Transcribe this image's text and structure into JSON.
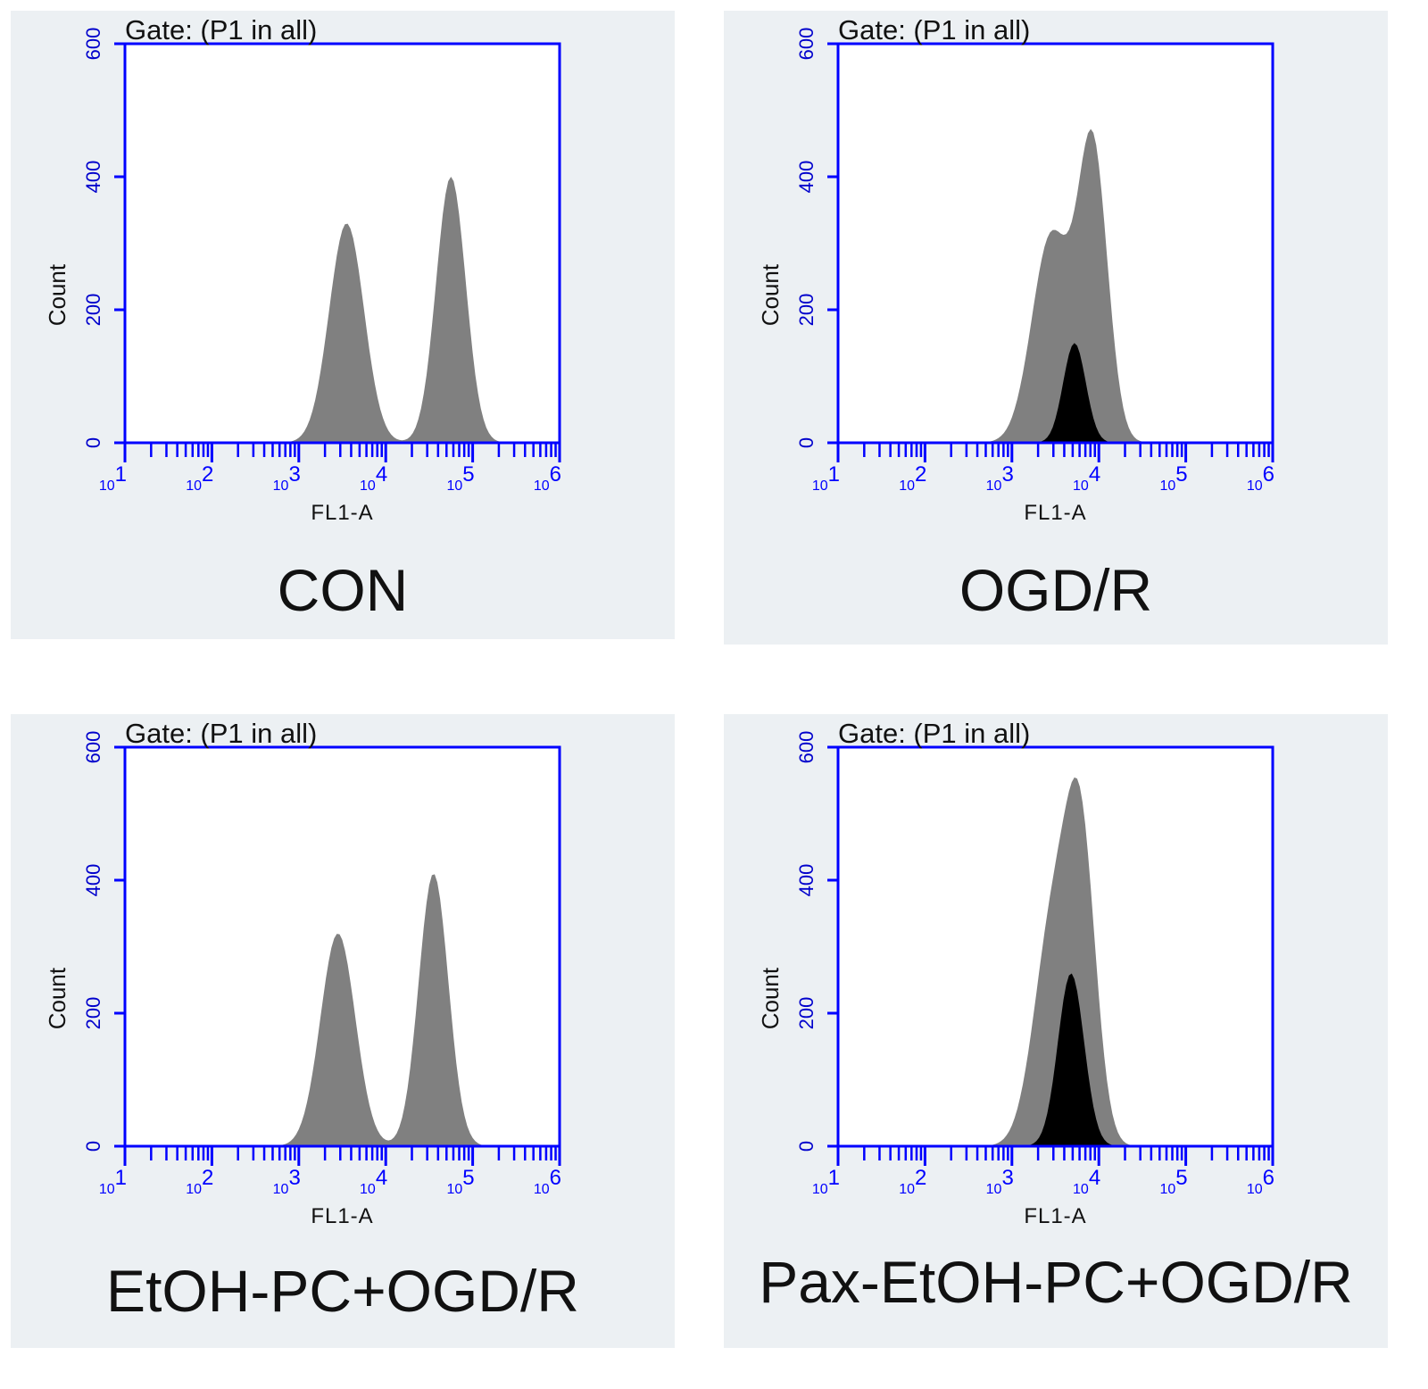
{
  "colors": {
    "panel_background": "#ecf0f3",
    "axis": "#0000ff",
    "tick_label": "#0000cc",
    "gray_histogram": "#808080",
    "black_histogram": "#000000",
    "text": "#111111"
  },
  "chart_data": [
    {
      "type": "histogram",
      "gate": "Gate: (P1 in all)",
      "xlabel": "FL1-A",
      "ylabel": "Count",
      "xscale": "log",
      "xlim": [
        10,
        1000000
      ],
      "ylim": [
        0,
        600
      ],
      "yticks": [
        0,
        200,
        400,
        600
      ],
      "xticks": [
        10,
        100,
        1000,
        10000,
        100000,
        1000000
      ],
      "grid": false,
      "label": "CON",
      "series": [
        {
          "color": "#808080",
          "peaks": [
            {
              "log10_mean": 3.55,
              "log10_sd": 0.2,
              "count": 330
            },
            {
              "log10_mean": 4.75,
              "log10_sd": 0.17,
              "count": 400
            }
          ]
        }
      ]
    },
    {
      "type": "histogram",
      "gate": "Gate: (P1 in all)",
      "xlabel": "FL1-A",
      "ylabel": "Count",
      "xscale": "log",
      "xlim": [
        10,
        1000000
      ],
      "ylim": [
        0,
        600
      ],
      "yticks": [
        0,
        200,
        400,
        600
      ],
      "xticks": [
        10,
        100,
        1000,
        10000,
        100000,
        1000000
      ],
      "grid": false,
      "label": "OGD/R",
      "series": [
        {
          "color": "#808080",
          "peaks": [
            {
              "log10_mean": 3.45,
              "log10_sd": 0.22,
              "count": 310
            },
            {
              "log10_mean": 3.93,
              "log10_sd": 0.17,
              "count": 440
            }
          ]
        },
        {
          "color": "#000000",
          "peaks": [
            {
              "log10_mean": 3.72,
              "log10_sd": 0.13,
              "count": 150
            }
          ]
        }
      ]
    },
    {
      "type": "histogram",
      "gate": "Gate: (P1 in all)",
      "xlabel": "FL1-A",
      "ylabel": "Count",
      "xscale": "log",
      "xlim": [
        10,
        1000000
      ],
      "ylim": [
        0,
        600
      ],
      "yticks": [
        0,
        200,
        400,
        600
      ],
      "xticks": [
        10,
        100,
        1000,
        10000,
        100000,
        1000000
      ],
      "grid": false,
      "label": "EtOH-PC+OGD/R",
      "series": [
        {
          "color": "#808080",
          "peaks": [
            {
              "log10_mean": 3.45,
              "log10_sd": 0.2,
              "count": 320
            },
            {
              "log10_mean": 4.55,
              "log10_sd": 0.17,
              "count": 410
            }
          ]
        }
      ]
    },
    {
      "type": "histogram",
      "gate": "Gate: (P1 in all)",
      "xlabel": "FL1-A",
      "ylabel": "Count",
      "xscale": "log",
      "xlim": [
        10,
        1000000
      ],
      "ylim": [
        0,
        600
      ],
      "yticks": [
        0,
        200,
        400,
        600
      ],
      "xticks": [
        10,
        100,
        1000,
        10000,
        100000,
        1000000
      ],
      "grid": false,
      "label": "Pax-EtOH-PC+OGD/R",
      "series": [
        {
          "color": "#808080",
          "peaks": [
            {
              "log10_mean": 3.48,
              "log10_sd": 0.22,
              "count": 340
            },
            {
              "log10_mean": 3.8,
              "log10_sd": 0.17,
              "count": 410
            }
          ]
        },
        {
          "color": "#000000",
          "peaks": [
            {
              "log10_mean": 3.68,
              "log10_sd": 0.15,
              "count": 260
            }
          ]
        }
      ]
    }
  ]
}
